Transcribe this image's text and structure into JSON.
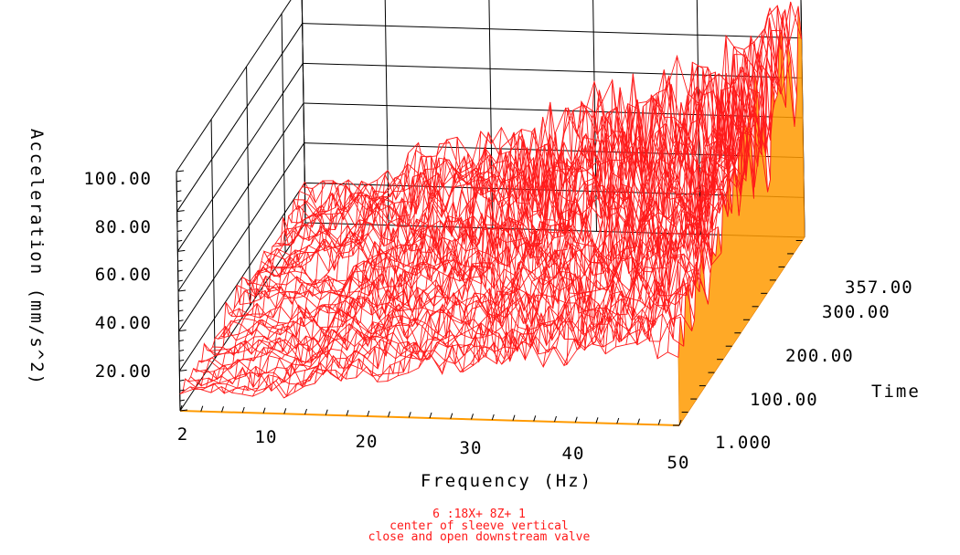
{
  "chart_data": {
    "type": "surface3d",
    "title": "",
    "xlabel": "Frequency (Hz)",
    "ylabel": "Time",
    "zlabel": "Acceleration (mm/s^2)",
    "x_ticks": [
      "2",
      "10",
      "20",
      "30",
      "40",
      "50"
    ],
    "x_tick_values": [
      2,
      10,
      20,
      30,
      40,
      50
    ],
    "xlim": [
      2,
      50
    ],
    "y_ticks": [
      "1.000",
      "100.00",
      "200.00",
      "300.00",
      "357.00"
    ],
    "y_tick_values": [
      1,
      100,
      200,
      300,
      357
    ],
    "ylim": [
      1,
      357
    ],
    "z_ticks": [
      "20.00",
      "40.00",
      "60.00",
      "80.00",
      "100.00"
    ],
    "z_tick_values": [
      20,
      40,
      60,
      80,
      100
    ],
    "zlim": [
      0,
      120
    ],
    "grid": true,
    "colors": {
      "mesh": "#ff1a1a",
      "side": "#ff9a00",
      "axes": "#000000"
    }
  },
  "caption": {
    "line1": "6 :18X+ 8Z+ 1",
    "line2": "center of sleeve vertical",
    "line3": "close and open downstream valve"
  }
}
